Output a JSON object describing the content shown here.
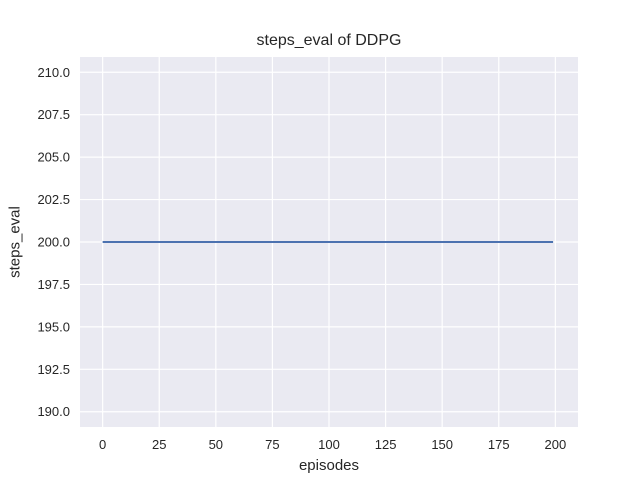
{
  "chart_data": {
    "type": "line",
    "title": "steps_eval of DDPG",
    "xlabel": "episodes",
    "ylabel": "steps_eval",
    "xlim": [
      -10,
      210
    ],
    "ylim": [
      189.1,
      210.9
    ],
    "xticks": [
      0,
      25,
      50,
      75,
      100,
      125,
      150,
      175,
      200
    ],
    "xtick_labels": [
      "0",
      "25",
      "50",
      "75",
      "100",
      "125",
      "150",
      "175",
      "200"
    ],
    "yticks": [
      190.0,
      192.5,
      195.0,
      197.5,
      200.0,
      202.5,
      205.0,
      207.5,
      210.0
    ],
    "ytick_labels": [
      "190.0",
      "192.5",
      "195.0",
      "197.5",
      "200.0",
      "202.5",
      "205.0",
      "207.5",
      "210.0"
    ],
    "grid": true,
    "legend": "none",
    "series": [
      {
        "name": "DDPG steps_eval",
        "description": "constant value 200 for episodes 0 through 199",
        "color": "#4C72B0",
        "points": [
          [
            0,
            200
          ],
          [
            199,
            200
          ]
        ]
      }
    ],
    "style": {
      "figure_bg": "#FFFFFF",
      "plot_bg": "#EAEAF2",
      "grid_color": "#FFFFFF",
      "text_color": "#262626",
      "line_width": 2,
      "tick_font_size": 13,
      "label_font_size": 15,
      "title_font_size": 16
    }
  }
}
